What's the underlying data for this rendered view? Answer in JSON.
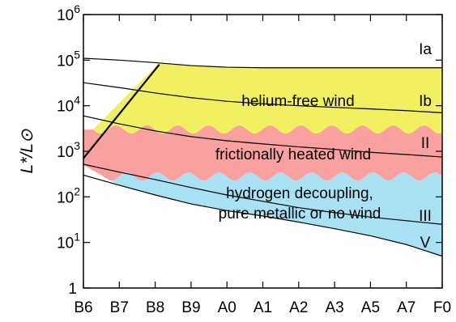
{
  "chart_data": {
    "type": "area",
    "ylabel": "L*/L⊙",
    "xlabel": "",
    "y_scale": "log",
    "ylim": [
      1,
      1000000
    ],
    "categories": [
      "B6",
      "B7",
      "B8",
      "B9",
      "A0",
      "A1",
      "A2",
      "A3",
      "A5",
      "A7",
      "F0"
    ],
    "y_ticks": [
      {
        "base": "1",
        "exp": ""
      },
      {
        "base": "10",
        "exp": "1"
      },
      {
        "base": "10",
        "exp": "2"
      },
      {
        "base": "10",
        "exp": "3"
      },
      {
        "base": "10",
        "exp": "4"
      },
      {
        "base": "10",
        "exp": "5"
      },
      {
        "base": "10",
        "exp": "6"
      }
    ],
    "luminosity_classes": [
      {
        "label": "Ia",
        "values": [
          110000,
          100000,
          88000,
          76000,
          70000,
          68000,
          68000,
          68000,
          68000,
          68000,
          68000
        ]
      },
      {
        "label": "Ib",
        "values": [
          32000,
          25000,
          19000,
          15000,
          12500,
          11000,
          10000,
          9200,
          8500,
          7800,
          7000
        ]
      },
      {
        "label": "II",
        "values": [
          6000,
          4000,
          2800,
          2100,
          1700,
          1450,
          1250,
          1100,
          950,
          850,
          750
        ]
      },
      {
        "label": "III",
        "values": [
          520,
          350,
          240,
          160,
          110,
          80,
          58,
          45,
          36,
          30,
          25
        ]
      },
      {
        "label": "V",
        "values": [
          300,
          180,
          110,
          70,
          50,
          38,
          28,
          20,
          14,
          9,
          5
        ]
      }
    ],
    "regions": [
      {
        "name": "helium-free wind",
        "color": "#f0f060"
      },
      {
        "name": "frictionally heated wind",
        "color": "#f9a0a0"
      },
      {
        "name": "hydrogen decoupling, pure metallic or no wind",
        "color": "#a8e2f2"
      }
    ],
    "region_labels": [
      {
        "text": "helium-free wind"
      },
      {
        "text": "frictionally heated wind"
      },
      {
        "text": "hydrogen decoupling,"
      },
      {
        "text": "pure metallic or no wind"
      }
    ],
    "boundary_line": [
      {
        "x": "B6",
        "y": 700
      },
      {
        "x": "B8",
        "y": 80000
      }
    ],
    "grid": false,
    "legend": "none"
  }
}
